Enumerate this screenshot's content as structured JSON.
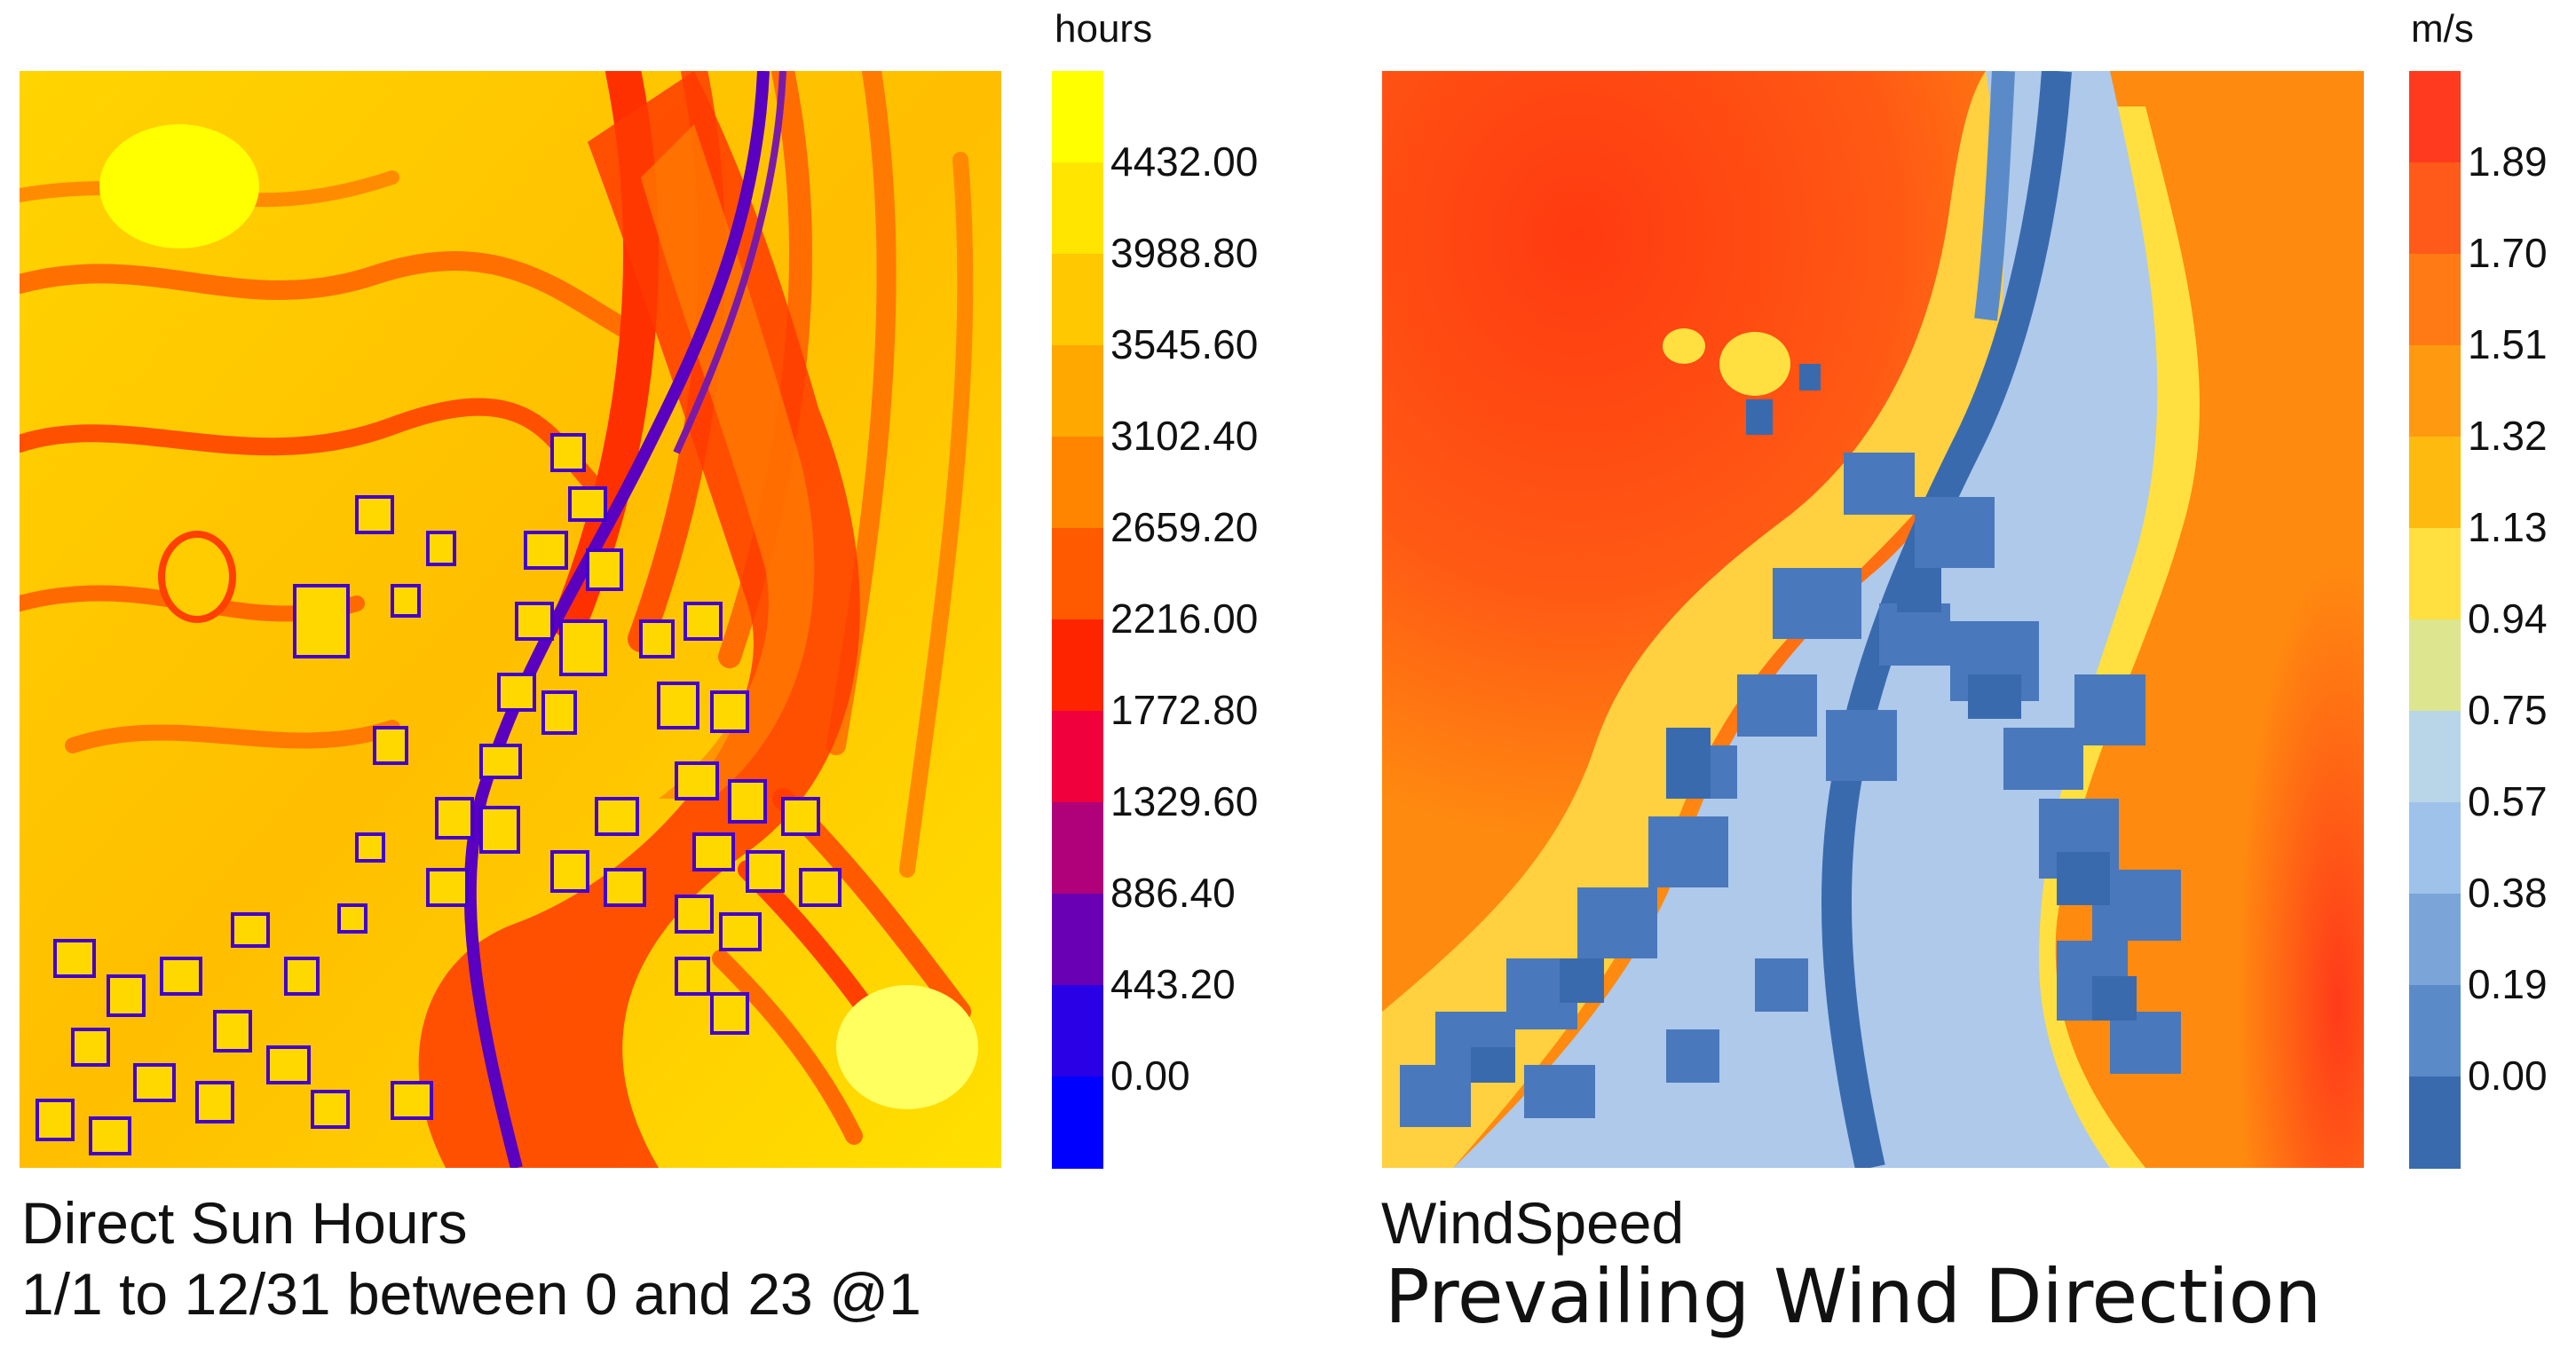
{
  "panels": {
    "sun": {
      "unit": "hours",
      "caption_line1": "Direct Sun Hours",
      "caption_line2": "1/1 to 12/31 between 0 and 23 @1",
      "legend": {
        "labels": [
          "4432.00",
          "3988.80",
          "3545.60",
          "3102.40",
          "2659.20",
          "2216.00",
          "1772.80",
          "1329.60",
          "886.40",
          "443.20",
          "0.00"
        ],
        "colors": [
          "#ffff00",
          "#ffe500",
          "#ffc800",
          "#ffa800",
          "#ff8400",
          "#ff5a00",
          "#ff2400",
          "#f0003c",
          "#b0007a",
          "#6a00b4",
          "#2a00e6",
          "#0000ff"
        ]
      }
    },
    "wind": {
      "unit": "m/s",
      "caption_line1": "WindSpeed",
      "caption_line2": "Prevailing Wind Direction",
      "legend": {
        "labels": [
          "1.89",
          "1.70",
          "1.51",
          "1.32",
          "1.13",
          "0.94",
          "0.75",
          "0.57",
          "0.38",
          "0.19",
          "0.00"
        ],
        "colors": [
          "#ff3a1e",
          "#ff5a1a",
          "#ff7a14",
          "#ff9a10",
          "#ffba10",
          "#ffe040",
          "#dde58e",
          "#b8d6e8",
          "#9ec2ea",
          "#7ba5d8",
          "#5a8bc8",
          "#3a6aae"
        ]
      }
    }
  }
}
